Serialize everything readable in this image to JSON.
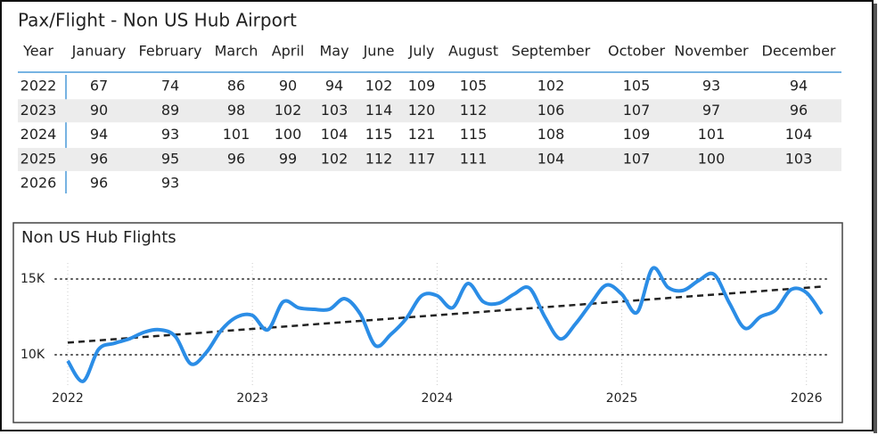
{
  "table": {
    "title": "Pax/Flight - Non US Hub Airport",
    "header": [
      "Year",
      "January",
      "February",
      "March",
      "April",
      "May",
      "June",
      "July",
      "August",
      "September",
      "October",
      "November",
      "December"
    ],
    "rows": [
      [
        2022,
        67,
        74,
        86,
        90,
        94,
        102,
        109,
        105,
        102,
        105,
        93,
        94
      ],
      [
        2023,
        90,
        89,
        98,
        102,
        103,
        114,
        120,
        112,
        106,
        107,
        97,
        96
      ],
      [
        2024,
        94,
        93,
        101,
        100,
        104,
        115,
        121,
        115,
        108,
        109,
        101,
        104
      ],
      [
        2025,
        96,
        95,
        96,
        99,
        102,
        112,
        117,
        111,
        104,
        107,
        100,
        103
      ],
      [
        2026,
        96,
        93,
        null,
        null,
        null,
        null,
        null,
        null,
        null,
        null,
        null,
        null
      ]
    ]
  },
  "chart_data": {
    "type": "line",
    "title": "Non US Hub Flights",
    "categories": [
      "2022",
      null,
      null,
      null,
      null,
      null,
      null,
      null,
      null,
      null,
      null,
      null,
      "2023",
      null,
      null,
      null,
      null,
      null,
      null,
      null,
      null,
      null,
      null,
      null,
      "2024",
      null,
      null,
      null,
      null,
      null,
      null,
      null,
      null,
      null,
      null,
      null,
      "2025",
      null,
      null,
      null,
      null,
      null,
      null,
      null,
      null,
      null,
      null,
      null,
      "2026",
      null
    ],
    "series": [
      {
        "color": "#2b8de6",
        "values": [
          9600,
          8250,
          10350,
          10750,
          11050,
          11500,
          11650,
          11200,
          9400,
          10150,
          11650,
          12500,
          12600,
          11650,
          13500,
          13100,
          13000,
          13000,
          13700,
          12700,
          10600,
          11350,
          12400,
          13900,
          13900,
          13100,
          14700,
          13500,
          13400,
          14000,
          14400,
          12500,
          11050,
          12050,
          13400,
          14600,
          14000,
          12800,
          15700,
          14450,
          14250,
          14900,
          15300,
          13400,
          11750,
          12500,
          12950,
          14300,
          14100,
          12700
        ]
      }
    ],
    "trend": {
      "color": "#222222",
      "values": [
        10800,
        14500
      ]
    },
    "ylim": [
      7500,
      16500
    ],
    "yticks": [
      {
        "value": 10000,
        "label": "10K"
      },
      {
        "value": 15000,
        "label": "15K"
      }
    ],
    "grid": true
  }
}
